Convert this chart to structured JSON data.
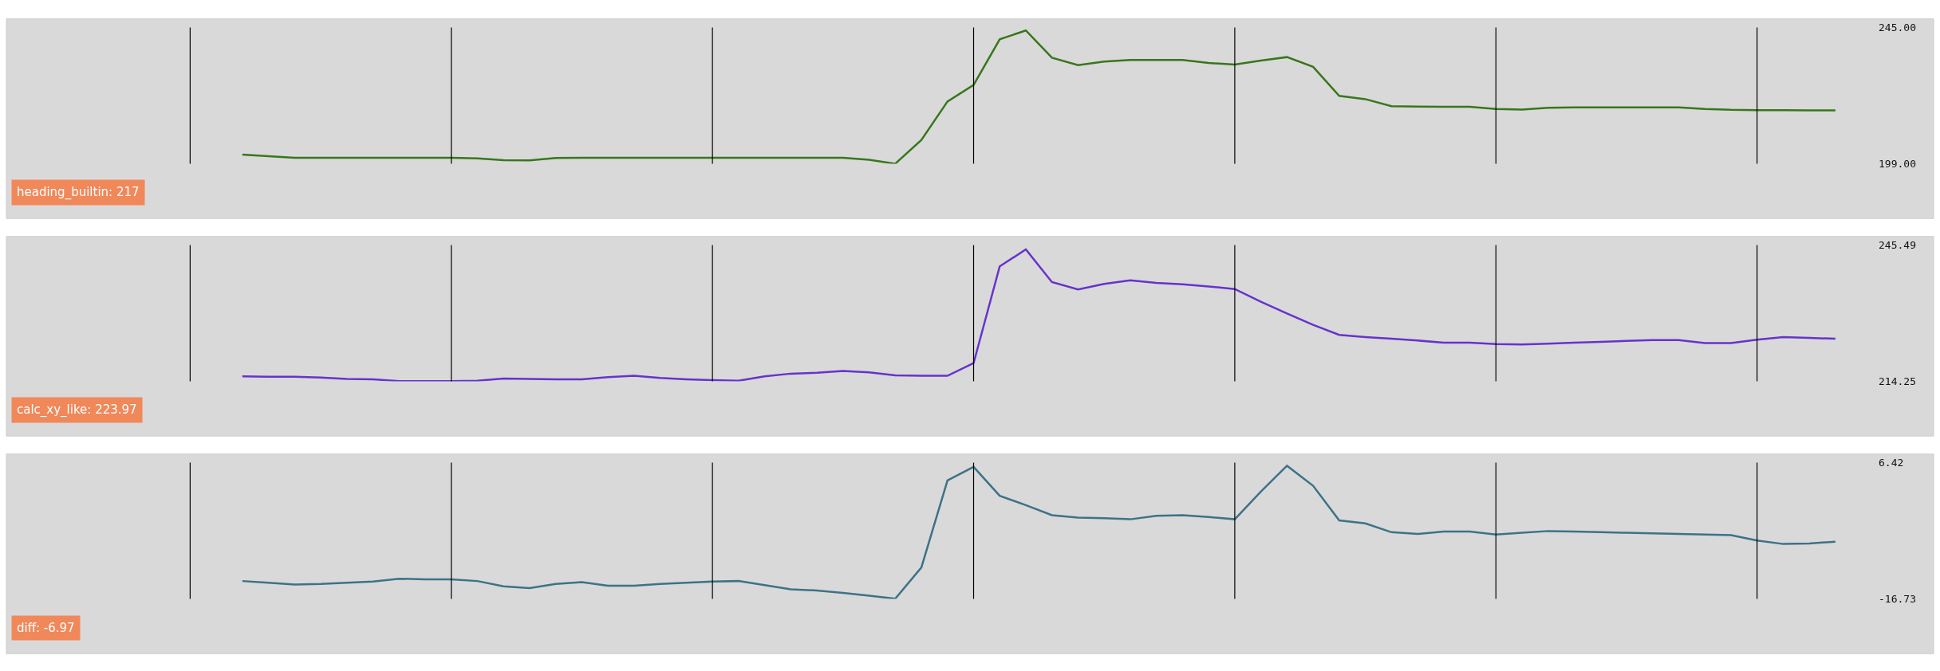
{
  "chart_data": [
    {
      "type": "line",
      "categories": [
        null,
        null,
        null,
        null,
        null,
        null,
        null,
        null,
        null,
        null,
        null,
        null,
        null,
        null,
        null,
        null,
        null,
        null,
        null,
        null,
        null,
        null,
        null,
        null,
        null,
        null,
        null,
        null,
        null,
        null,
        null,
        null,
        null,
        null,
        null,
        null,
        null,
        null,
        null,
        null,
        null,
        null,
        null,
        null,
        null,
        null,
        null,
        null,
        null,
        null,
        null,
        null,
        null,
        null,
        null,
        null,
        null,
        null,
        null,
        null,
        null,
        null
      ],
      "series": [
        {
          "color": "#38761d",
          "values": [
            202.1,
            201.5,
            201,
            201,
            201,
            201,
            201,
            201,
            201,
            200.8,
            200.2,
            200.1,
            200.9,
            201,
            201,
            201,
            201,
            201,
            201,
            201,
            201,
            201,
            201,
            201,
            200.3,
            199,
            207,
            220,
            225.6,
            241,
            244,
            234.8,
            232.3,
            233.5,
            234,
            234,
            234,
            233,
            232.5,
            233.8,
            235,
            231.7,
            221.9,
            220.8,
            218.4,
            218.3,
            218.2,
            218.2,
            217.5,
            217.3,
            217.9,
            218,
            218,
            218,
            218,
            218,
            217.5,
            217.2,
            217.1,
            217.1,
            217,
            217
          ]
        }
      ],
      "ylim": [
        199,
        245
      ],
      "yticks": [
        {
          "value": 199,
          "label": "199.00"
        },
        {
          "value": 245,
          "label": "245.00"
        }
      ],
      "grid": "x",
      "tick_labels": "y",
      "annotations": [
        "heading_builtin: 217"
      ]
    },
    {
      "type": "line",
      "categories": [
        null,
        null,
        null,
        null,
        null,
        null,
        null,
        null,
        null,
        null,
        null,
        null,
        null,
        null,
        null,
        null,
        null,
        null,
        null,
        null,
        null,
        null,
        null,
        null,
        null,
        null,
        null,
        null,
        null,
        null,
        null,
        null,
        null,
        null,
        null,
        null,
        null,
        null,
        null,
        null,
        null,
        null,
        null,
        null,
        null,
        null,
        null,
        null,
        null,
        null,
        null,
        null,
        null,
        null,
        null,
        null,
        null,
        null,
        null,
        null,
        null,
        null
      ],
      "series": [
        {
          "color": "#6633cc",
          "values": [
            215.4,
            215.3,
            215.3,
            215.1,
            214.8,
            214.7,
            214.3,
            214.3,
            214.3,
            214.4,
            214.9,
            214.8,
            214.7,
            214.7,
            215.2,
            215.5,
            215,
            214.7,
            214.5,
            214.4,
            215.4,
            216,
            216.2,
            216.6,
            216.3,
            215.6,
            215.5,
            215.5,
            218.4,
            240.6,
            244.5,
            237,
            235.3,
            236.6,
            237.4,
            236.8,
            236.5,
            236,
            235.4,
            232.5,
            229.8,
            227.2,
            224.9,
            224.4,
            224,
            223.6,
            223.1,
            223.1,
            222.8,
            222.7,
            222.9,
            223.1,
            223.3,
            223.5,
            223.7,
            223.7,
            223,
            223,
            223.8,
            224.4,
            224.2,
            224
          ]
        }
      ],
      "ylim": [
        214.25,
        245.49
      ],
      "yticks": [
        {
          "value": 214.25,
          "label": "214.25"
        },
        {
          "value": 245.49,
          "label": "245.49"
        }
      ],
      "grid": "x",
      "tick_labels": "y",
      "annotations": [
        "calc_xy_like: 223.97"
      ]
    },
    {
      "type": "line",
      "categories": [
        null,
        null,
        null,
        null,
        null,
        null,
        null,
        null,
        null,
        null,
        null,
        null,
        null,
        null,
        null,
        null,
        null,
        null,
        null,
        null,
        null,
        null,
        null,
        null,
        null,
        null,
        null,
        null,
        null,
        null,
        null,
        null,
        null,
        null,
        null,
        null,
        null,
        null,
        null,
        null,
        null,
        null,
        null,
        null,
        null,
        null,
        null,
        null,
        null,
        null,
        null,
        null,
        null,
        null,
        null,
        null,
        null,
        null,
        null,
        null,
        null,
        null
      ],
      "series": [
        {
          "color": "#3d7287",
          "values": [
            -13.7,
            -14.0,
            -14.3,
            -14.2,
            -14.0,
            -13.8,
            -13.3,
            -13.4,
            -13.4,
            -13.7,
            -14.6,
            -14.9,
            -14.2,
            -13.9,
            -14.5,
            -14.5,
            -14.2,
            -14.0,
            -13.8,
            -13.7,
            -14.4,
            -15.1,
            -15.3,
            -15.7,
            -16.2,
            -16.7,
            -11.4,
            3.4,
            5.7,
            0.8,
            -0.8,
            -2.5,
            -2.9,
            -3.0,
            -3.2,
            -2.6,
            -2.5,
            -2.8,
            -3.2,
            1.5,
            5.9,
            2.5,
            -3.4,
            -3.9,
            -5.4,
            -5.7,
            -5.3,
            -5.3,
            -5.8,
            -5.5,
            -5.2,
            -5.3,
            -5.4,
            -5.5,
            -5.6,
            -5.7,
            -5.8,
            -5.9,
            -6.8,
            -7.4,
            -7.3,
            -7.0
          ]
        }
      ],
      "ylim": [
        -16.73,
        6.42
      ],
      "yticks": [
        {
          "value": -16.73,
          "label": "-16.73"
        },
        {
          "value": 6.42,
          "label": "6.42"
        }
      ],
      "grid": "x",
      "tick_labels": "y",
      "annotations": [
        "diff: -6.97"
      ]
    }
  ]
}
